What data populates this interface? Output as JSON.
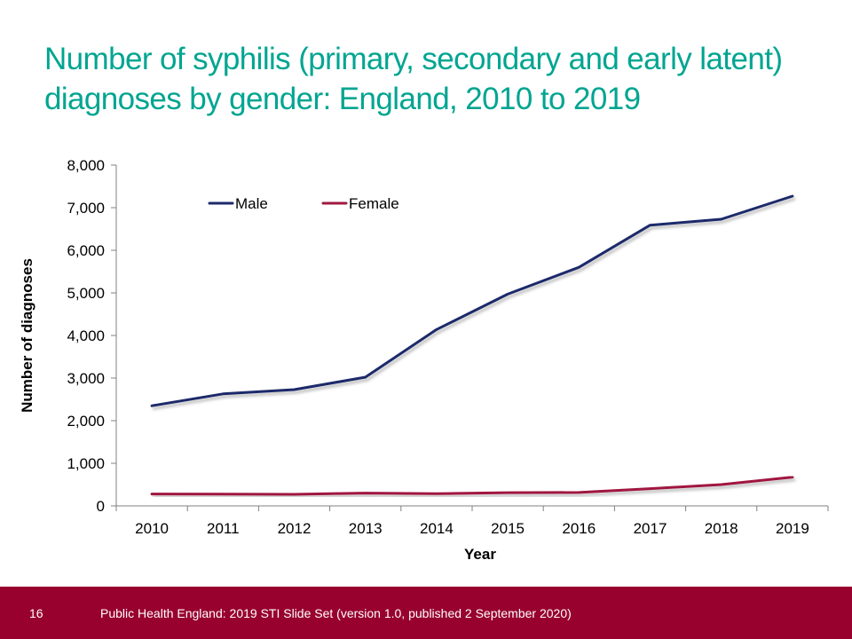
{
  "slide": {
    "title": "Number of syphilis (primary, secondary and early latent) diagnoses by gender: England, 2010 to 2019",
    "number": "16",
    "footer_text": "Public Health England: 2019 STI Slide Set (version 1.0, published 2 September 2020)"
  },
  "colors": {
    "title": "#00a591",
    "footer_bar": "#98002e",
    "male_series": "#1f2a6b",
    "female_series": "#a0193f"
  },
  "chart_data": {
    "type": "line",
    "title": "Number of syphilis (primary, secondary and early latent) diagnoses by gender: England, 2010 to 2019",
    "xlabel": "Year",
    "ylabel": "Number of diagnoses",
    "categories": [
      "2010",
      "2011",
      "2012",
      "2013",
      "2014",
      "2015",
      "2016",
      "2017",
      "2018",
      "2019"
    ],
    "series": [
      {
        "name": "Male",
        "color": "#1f2a6b",
        "values": [
          2350,
          2630,
          2730,
          3020,
          4140,
          4970,
          5600,
          6590,
          6730,
          7270
        ]
      },
      {
        "name": "Female",
        "color": "#a0193f",
        "values": [
          280,
          275,
          270,
          300,
          285,
          310,
          315,
          405,
          500,
          675
        ]
      }
    ],
    "ylim": [
      0,
      8000
    ],
    "yticks": [
      0,
      1000,
      2000,
      3000,
      4000,
      5000,
      6000,
      7000,
      8000
    ],
    "ytick_labels": [
      "0",
      "1,000",
      "2,000",
      "3,000",
      "4,000",
      "5,000",
      "6,000",
      "7,000",
      "8,000"
    ],
    "grid": false,
    "legend_position": "top-left inside"
  }
}
